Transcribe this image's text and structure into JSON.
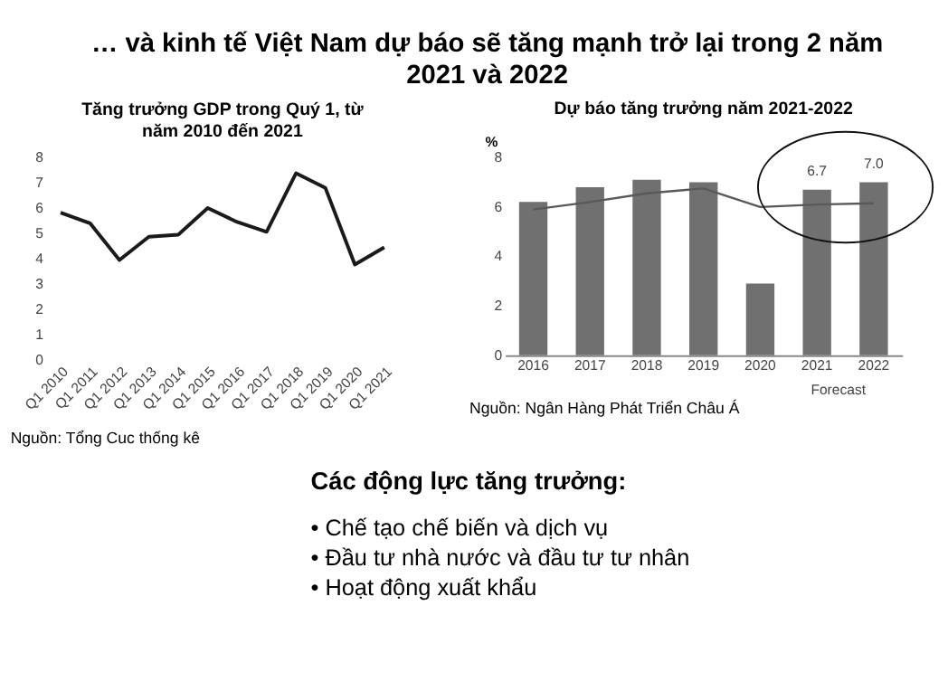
{
  "chart_data": [
    {
      "type": "other",
      "title": "… và kinh tế Việt Nam dự báo sẽ tăng mạnh trở lại trong 2 năm 2021 và 2022"
    },
    {
      "type": "line",
      "title": "Tăng trưởng GDP trong Quý 1, từ năm 2010 đến 2021",
      "categories": [
        "Q1 2010",
        "Q1 2011",
        "Q1 2012",
        "Q1 2013",
        "Q1 2014",
        "Q1 2015",
        "Q1 2016",
        "Q1 2017",
        "Q1 2018",
        "Q1 2019",
        "Q1 2020",
        "Q1 2021"
      ],
      "series": [
        {
          "color": "#1a1a1a",
          "values": [
            5.83,
            5.41,
            3.96,
            4.88,
            4.96,
            6.01,
            5.46,
            5.07,
            7.38,
            6.8,
            3.78,
            4.46
          ]
        }
      ],
      "ylim": [
        0,
        8
      ],
      "yticks": [
        0,
        1,
        2,
        3,
        4,
        5,
        6,
        7,
        8
      ],
      "grid": false,
      "annotations": [
        "Nguồn: Tổng Cuc thống kê"
      ]
    },
    {
      "type": "bar",
      "title": "Dự báo tăng trưởng năm 2021-2022",
      "ylabel": "%",
      "categories": [
        "2016",
        "2017",
        "2018",
        "2019",
        "2020",
        "2021",
        "2022"
      ],
      "series": [
        {
          "type": "bar",
          "color": "#707070",
          "values": [
            6.2,
            6.8,
            7.1,
            7.0,
            2.9,
            6.7,
            7.0
          ],
          "value_labels": [
            null,
            null,
            null,
            null,
            null,
            "6.7",
            "7.0"
          ]
        },
        {
          "type": "line",
          "color": "#595959",
          "values": [
            5.9,
            6.2,
            6.55,
            6.75,
            6.0,
            6.1,
            6.15
          ]
        }
      ],
      "ylim": [
        0,
        8
      ],
      "yticks": [
        0,
        2,
        4,
        6,
        8
      ],
      "grid": false,
      "annotations": [
        "Forecast",
        "Nguồn: Ngân Hàng Phát Triển Châu Á"
      ]
    },
    {
      "type": "other",
      "subtitle": "Các động lực tăng trưởng:",
      "annotations": [
        "• Chế tạo chế biến và dịch vụ",
        "• Đầu tư nhà nước và đầu tư tư nhân",
        "• Hoạt động xuất khẩu"
      ]
    }
  ]
}
